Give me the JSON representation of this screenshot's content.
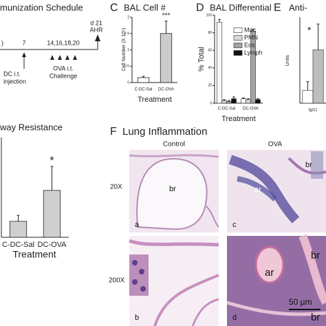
{
  "schedule": {
    "title": "munization Schedule",
    "day7": "7",
    "challenge_days": "14,16,18,20",
    "end_day": "d 21",
    "end_label": "AHR",
    "dc": "DC i.t.",
    "dc2": "injection",
    "ova": "OVA i.t.",
    "ova2": "Challenge"
  },
  "chart_data": [
    {
      "panel": "C",
      "type": "bar",
      "title": "BAL Cell #",
      "y_label": "Cell Number (X 10⁶)",
      "x_label": "Treatment",
      "categories": [
        "C-DC-Sal",
        "DC-OVA"
      ],
      "values": [
        0.15,
        1.5
      ],
      "errors": [
        0.04,
        0.38
      ],
      "colors": [
        "#ffffff",
        "#cccccc"
      ],
      "annotations": [
        null,
        "***"
      ],
      "ylim": [
        0,
        2
      ],
      "yticks": [
        0,
        0.5,
        1,
        1.5,
        2
      ]
    },
    {
      "panel": "D",
      "type": "grouped-bar",
      "title": "BAL Differential",
      "y_label": "% Total",
      "x_label": "Treatment",
      "categories": [
        "C-DC-Sal",
        "DC-OVA"
      ],
      "series": [
        {
          "name": "Mac",
          "color": "#ffffff",
          "values": [
            92,
            5
          ],
          "errors": [
            3,
            1
          ]
        },
        {
          "name": "PMN",
          "color": "#d9d9d9",
          "values": [
            3,
            4
          ],
          "errors": [
            1,
            1
          ]
        },
        {
          "name": "Eos",
          "color": "#a3a3a3",
          "values": [
            2,
            82
          ],
          "errors": [
            1,
            2
          ]
        },
        {
          "name": "Lymph",
          "color": "#111111",
          "values": [
            5,
            4
          ],
          "errors": [
            2,
            1
          ]
        }
      ],
      "ylim": [
        0,
        100
      ],
      "yticks": [
        0,
        20,
        40,
        60,
        80,
        100
      ]
    },
    {
      "panel": "E",
      "type": "grouped-bar",
      "title": "Anti-",
      "y_label": "Units",
      "categories": [
        "IgG1"
      ],
      "series": [
        {
          "color": "#ffffff",
          "values": [
            150
          ],
          "errors": [
            100
          ]
        },
        {
          "color": "#bdbdbd",
          "values": [
            620
          ],
          "errors": [
            300
          ]
        }
      ],
      "annotation": "*",
      "ylim": [
        0,
        1000
      ]
    },
    {
      "type": "bar",
      "title": "way Resistance",
      "x_label": "Treatment",
      "categories": [
        "C-DC-Sal",
        "DC-OVA"
      ],
      "values": [
        0.8,
        2.35
      ],
      "errors": [
        0.3,
        1.2
      ],
      "colors": [
        "#cfcfcf",
        "#cfcfcf"
      ],
      "annotations": [
        null,
        "*"
      ],
      "ylim": [
        0,
        5
      ]
    }
  ],
  "histology": {
    "panel": "F",
    "title": "Lung Inflammation",
    "columns": [
      "Control",
      "OVA"
    ],
    "rows": [
      "20X",
      "200X"
    ],
    "labels": {
      "a_br": "br",
      "a": "a",
      "c_ar": "ar",
      "c_br": "br",
      "c": "c",
      "b": "b",
      "d_ar": "ar",
      "d_br": "br",
      "d_br2": "br",
      "d": "d"
    },
    "scale": "50 µm"
  }
}
